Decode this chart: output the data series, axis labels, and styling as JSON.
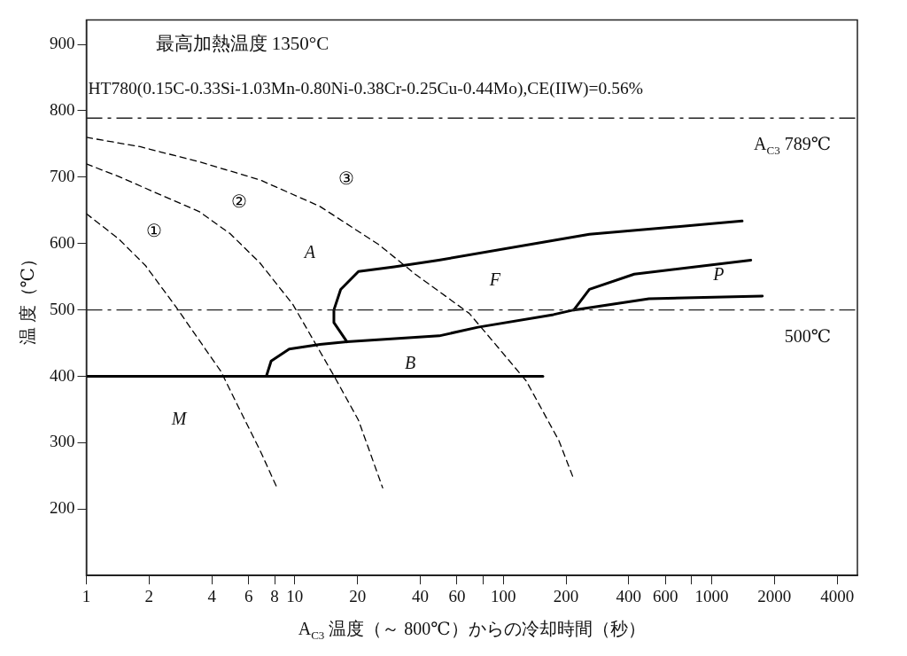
{
  "chart_data": {
    "type": "line",
    "title": "最高加熱温度 1350°C",
    "subtitle": "HT780(0.15C-0.33Si-1.03Mn-0.80Ni-0.38Cr-0.25Cu-0.44Mo),CE(IIW)=0.56%",
    "xlabel": "A$_{C3}$ 温度（～ 800℃）からの冷却時間（秒）",
    "ylabel": "温 度（℃）",
    "log": "x",
    "marker": "none",
    "xlim": [
      1,
      5000
    ],
    "ylim": [
      100,
      937
    ],
    "xticks": [
      1,
      2,
      4,
      6,
      8,
      10,
      20,
      40,
      60,
      {
        "value": 80,
        "label": null
      },
      100,
      200,
      400,
      600,
      {
        "value": 800,
        "label": null
      },
      1000,
      2000,
      4000
    ],
    "yticks": [
      200,
      300,
      400,
      500,
      600,
      700,
      800,
      900
    ],
    "series": [
      {
        "name": "①",
        "color": "#000000",
        "line_style": "dashed",
        "x": [
          1,
          1.43,
          1.92,
          2.7,
          4.43,
          5.4,
          6.8,
          8.3
        ],
        "values": [
          645,
          607,
          567,
          504,
          407,
          352,
          289,
          229
        ]
      },
      {
        "name": "②",
        "color": "#000000",
        "line_style": "dashed",
        "x": [
          1,
          1.43,
          2.21,
          3.49,
          4.89,
          6.8,
          9.8,
          15.4,
          20.2,
          26.4
        ],
        "values": [
          720,
          701,
          675,
          648,
          615,
          571,
          508,
          401,
          334,
          232
        ]
      },
      {
        "name": "③",
        "color": "#000000",
        "line_style": "dashed",
        "x": [
          1,
          1.81,
          3.49,
          6.8,
          13.2,
          25.4,
          37.8,
          68.6,
          81.2,
          129,
          185,
          218
        ],
        "values": [
          760,
          746,
          723,
          696,
          656,
          598,
          554,
          495,
          468,
          393,
          303,
          245
        ]
      },
      {
        "color": "#000000",
        "line_style": "solid",
        "x": [
          1,
          155
        ],
        "values": [
          400,
          400
        ]
      },
      {
        "color": "#000000",
        "line_style": "solid",
        "x": [
          7.3,
          7.7,
          9.4,
          13.2,
          17.8,
          49.3,
          75.6,
          174,
          218,
          500,
          1750
        ],
        "values": [
          400,
          423,
          441,
          448,
          452,
          461,
          474,
          493,
          500,
          517,
          521
        ]
      },
      {
        "color": "#000000",
        "line_style": "solid",
        "x": [
          17.8,
          15.4,
          15.4,
          16.6,
          20.2,
          30,
          49,
          259,
          1400
        ],
        "values": [
          452,
          481,
          500,
          531,
          558,
          565,
          575,
          614,
          634
        ]
      },
      {
        "color": "#000000",
        "line_style": "solid",
        "x": [
          218,
          259,
          425,
          1540
        ],
        "values": [
          500,
          531,
          554,
          575
        ]
      }
    ],
    "ref_lines": [
      {
        "axis": "y",
        "value": 789,
        "label": "A$_{C3}$ 789℃",
        "line_style": "dashed"
      },
      {
        "axis": "y",
        "value": 500,
        "label": "500℃",
        "line_style": "dashed"
      }
    ],
    "annotations": [
      "A",
      "F",
      "B",
      "P",
      "M"
    ]
  }
}
